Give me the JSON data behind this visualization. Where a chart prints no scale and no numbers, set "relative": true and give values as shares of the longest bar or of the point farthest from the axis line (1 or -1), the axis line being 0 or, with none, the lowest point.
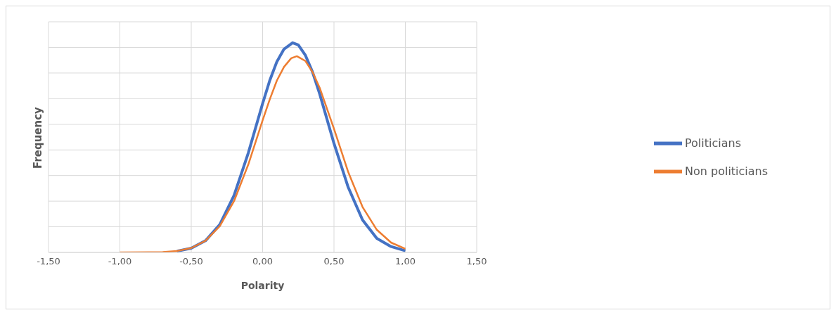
{
  "chart_data": {
    "type": "line",
    "relative": true,
    "xlabel": "Polarity",
    "ylabel": "Frequency",
    "xlim": [
      -1.5,
      1.5
    ],
    "xticks": [
      {
        "value": -1.5,
        "label": "-1,50"
      },
      {
        "value": -1,
        "label": "-1,00"
      },
      {
        "value": -0.5,
        "label": "-0,50"
      },
      {
        "value": 0,
        "label": "0,00"
      },
      {
        "value": 0.5,
        "label": "0,50"
      },
      {
        "value": 1,
        "label": "1,00"
      },
      {
        "value": 1.5,
        "label": "1,50"
      }
    ],
    "grid": true,
    "legend": "right",
    "marker": "none",
    "line_style": "solid",
    "series": [
      {
        "name": "Politicians",
        "color": "#4472c4",
        "x": [
          -0.6,
          -0.5,
          -0.4,
          -0.3,
          -0.2,
          -0.1,
          0.0,
          0.05,
          0.1,
          0.15,
          0.21,
          0.25,
          0.3,
          0.35,
          0.4,
          0.5,
          0.6,
          0.7,
          0.8,
          0.9,
          1.0
        ],
        "values": [
          0.006,
          0.02,
          0.056,
          0.133,
          0.272,
          0.475,
          0.71,
          0.82,
          0.91,
          0.97,
          1,
          0.99,
          0.94,
          0.86,
          0.756,
          0.52,
          0.31,
          0.155,
          0.067,
          0.028,
          0.008
        ]
      },
      {
        "name": "Non politicians",
        "color": "#ed7d31",
        "x": [
          -1.0,
          -0.8,
          -0.7,
          -0.6,
          -0.5,
          -0.4,
          -0.3,
          -0.2,
          -0.1,
          0.0,
          0.05,
          0.1,
          0.15,
          0.2,
          0.24,
          0.3,
          0.35,
          0.4,
          0.5,
          0.6,
          0.7,
          0.8,
          0.9,
          1.0
        ],
        "values": [
          0,
          0.0005,
          0.002,
          0.007,
          0.021,
          0.056,
          0.125,
          0.245,
          0.42,
          0.63,
          0.73,
          0.82,
          0.885,
          0.926,
          0.936,
          0.913,
          0.86,
          0.785,
          0.59,
          0.383,
          0.217,
          0.108,
          0.047,
          0.017
        ]
      }
    ]
  }
}
